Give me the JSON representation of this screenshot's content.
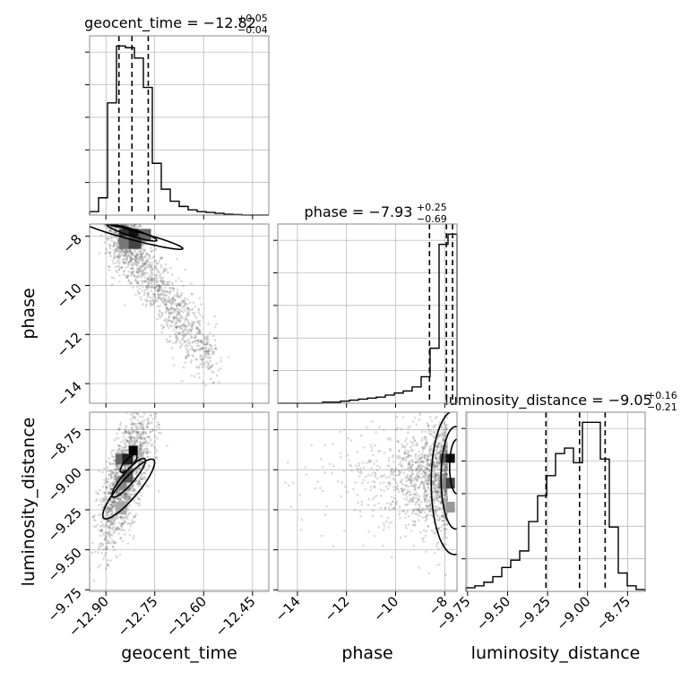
{
  "chart_data": {
    "type": "corner",
    "parameters": [
      {
        "name": "geocent_time",
        "axis_label": "geocent_time",
        "title_main": "geocent_time = −12.82",
        "title_sup": "+0.05",
        "title_sub": "−0.04",
        "range": [
          -12.95,
          -12.4
        ],
        "ticks": [
          -12.9,
          -12.75,
          -12.6,
          -12.45
        ],
        "tick_labels": [
          "−12.90",
          "−12.75",
          "−12.60",
          "−12.45"
        ],
        "median": -12.82,
        "quantiles": [
          -12.86,
          -12.82,
          -12.77
        ]
      },
      {
        "name": "phase",
        "axis_label": "phase",
        "title_main": "phase = −7.93",
        "title_sup": "+0.25",
        "title_sub": "−0.69",
        "range": [
          -14.8,
          -7.5
        ],
        "ticks": [
          -14,
          -12,
          -10,
          -8
        ],
        "tick_labels": [
          "−14",
          "−12",
          "−10",
          "−8"
        ],
        "median": -7.93,
        "quantiles": [
          -8.62,
          -7.93,
          -7.68
        ]
      },
      {
        "name": "luminosity_distance",
        "axis_label": "luminosity_distance",
        "title_main": "luminosity_distance = −9.05",
        "title_sup": "+0.16",
        "title_sub": "−0.21",
        "range": [
          -9.76,
          -8.64
        ],
        "ticks": [
          -9.75,
          -9.5,
          -9.25,
          -9.0,
          -8.75
        ],
        "tick_labels": [
          "−9.75",
          "−9.50",
          "−9.25",
          "−9.00",
          "−8.75"
        ],
        "median": -9.05,
        "quantiles": [
          -9.26,
          -9.05,
          -8.89
        ]
      }
    ],
    "histograms": [
      {
        "param": "geocent_time",
        "bin_edges": [
          -12.95,
          -12.9225,
          -12.895,
          -12.8675,
          -12.84,
          -12.8125,
          -12.785,
          -12.7575,
          -12.73,
          -12.7025,
          -12.675,
          -12.6475,
          -12.62,
          -12.5925,
          -12.565,
          -12.5375,
          -12.51,
          -12.4825,
          -12.455,
          -12.4275,
          -12.4
        ],
        "counts": [
          2,
          10,
          65,
          98,
          97,
          91,
          74,
          30,
          15,
          8,
          5,
          3,
          2,
          1.5,
          1,
          0.5,
          0.3,
          0,
          0,
          0
        ]
      },
      {
        "param": "phase",
        "bin_edges": [
          -14.8,
          -14.435,
          -14.07,
          -13.705,
          -13.34,
          -12.975,
          -12.61,
          -12.245,
          -11.88,
          -11.515,
          -11.15,
          -10.785,
          -10.42,
          -10.055,
          -9.69,
          -9.325,
          -8.96,
          -8.595,
          -8.23,
          -7.865,
          -7.5
        ],
        "counts": [
          0,
          0,
          0,
          0,
          0,
          0.5,
          0.5,
          1,
          1.5,
          2,
          2.5,
          3,
          4,
          5,
          6,
          8,
          13,
          27,
          78,
          83
        ]
      },
      {
        "param": "luminosity_distance",
        "bin_edges": [
          -9.76,
          -9.704,
          -9.648,
          -9.592,
          -9.536,
          -9.48,
          -9.424,
          -9.368,
          -9.312,
          -9.256,
          -9.2,
          -9.144,
          -9.088,
          -9.032,
          -8.976,
          -8.92,
          -8.864,
          -8.808,
          -8.752,
          -8.696,
          -8.64
        ],
        "counts": [
          2,
          3,
          5,
          8,
          13,
          17,
          22,
          38,
          52,
          63,
          75,
          78,
          70,
          92,
          92,
          72,
          35,
          10,
          3,
          1
        ]
      }
    ],
    "scatter_panels": [
      {
        "x": "geocent_time",
        "y": "phase"
      },
      {
        "x": "geocent_time",
        "y": "luminosity_distance"
      },
      {
        "x": "phase",
        "y": "luminosity_distance"
      }
    ],
    "grid": true,
    "colors": {
      "line": "#000000",
      "points": "#555555",
      "grid": "#b0b0b0",
      "axis": "#888888"
    }
  }
}
